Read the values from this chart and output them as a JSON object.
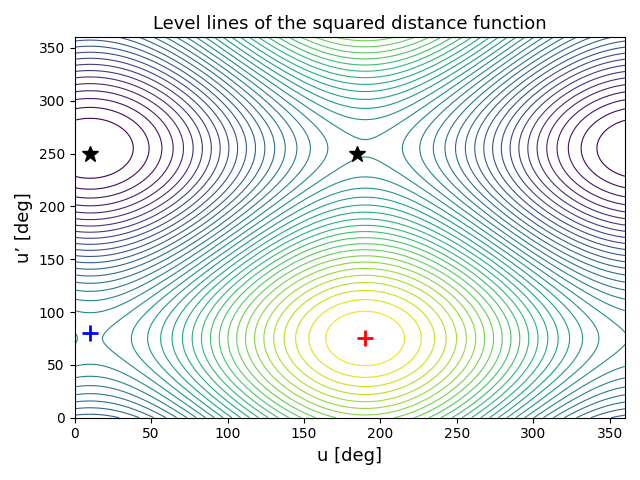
{
  "title": "Level lines of the squared distance function",
  "xlabel": "u [deg]",
  "ylabel": "u’ [deg]",
  "xlim": [
    0,
    360
  ],
  "ylim": [
    0,
    360
  ],
  "xticks": [
    0,
    50,
    100,
    150,
    200,
    250,
    300,
    350
  ],
  "yticks": [
    0,
    50,
    100,
    150,
    200,
    250,
    300,
    350
  ],
  "red_plus": [
    190,
    75
  ],
  "blue_plus": [
    10,
    80
  ],
  "black_star1": [
    10,
    250
  ],
  "black_star2": [
    185,
    250
  ],
  "u0": 190.0,
  "uprime0": 75.0,
  "n_levels": 40,
  "colormap": "viridis_r",
  "figsize": [
    6.4,
    4.8
  ],
  "dpi": 100,
  "title_fontsize": 13,
  "label_fontsize": 13,
  "weight_diag": 1.0,
  "weight_sep": 0.15
}
